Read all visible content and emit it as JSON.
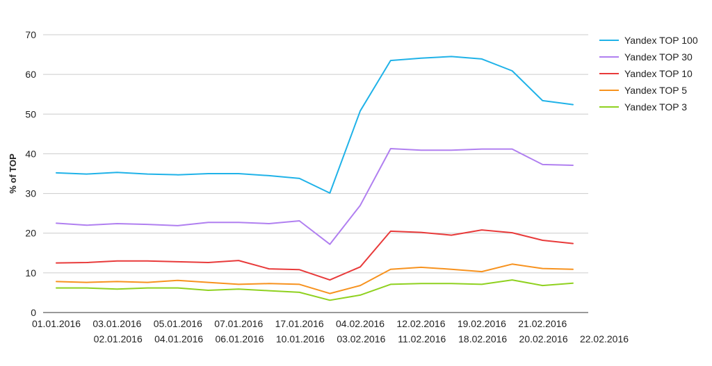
{
  "chart_data": {
    "type": "line",
    "title": "",
    "xlabel": "",
    "ylabel": "% of TOP",
    "ylim": [
      0,
      70
    ],
    "yticks": [
      0,
      10,
      20,
      30,
      40,
      50,
      60,
      70
    ],
    "grid": "horizontal",
    "legend_position": "right",
    "categories": [
      "01.01.2016",
      "02.01.2016",
      "03.01.2016",
      "04.01.2016",
      "05.01.2016",
      "06.01.2016",
      "07.01.2016",
      "10.01.2016",
      "17.01.2016",
      "03.02.2016",
      "04.02.2016",
      "11.02.2016",
      "12.02.2016",
      "18.02.2016",
      "19.02.2016",
      "20.02.2016",
      "21.02.2016",
      "22.02.2016"
    ],
    "series": [
      {
        "name": "Yandex TOP 100",
        "color": "#1fb2e8",
        "values": [
          35.2,
          34.9,
          35.3,
          34.9,
          34.7,
          35.0,
          35.0,
          34.5,
          33.8,
          30.1,
          50.8,
          63.5,
          64.1,
          64.5,
          63.9,
          60.9,
          53.4,
          52.4
        ]
      },
      {
        "name": "Yandex TOP 30",
        "color": "#b07ff0",
        "values": [
          22.5,
          22.0,
          22.4,
          22.2,
          21.9,
          22.7,
          22.7,
          22.4,
          23.1,
          17.2,
          27.0,
          41.3,
          40.9,
          40.9,
          41.2,
          41.2,
          37.3,
          37.1
        ]
      },
      {
        "name": "Yandex TOP 10",
        "color": "#e83a3a",
        "values": [
          12.5,
          12.6,
          13.0,
          13.0,
          12.8,
          12.6,
          13.1,
          11.0,
          10.8,
          8.2,
          11.5,
          20.5,
          20.2,
          19.5,
          20.8,
          20.1,
          18.2,
          17.4
        ]
      },
      {
        "name": "Yandex TOP 5",
        "color": "#f7921e",
        "values": [
          7.8,
          7.6,
          7.8,
          7.6,
          8.1,
          7.6,
          7.1,
          7.3,
          7.1,
          4.8,
          6.8,
          10.9,
          11.4,
          10.9,
          10.3,
          12.2,
          11.1,
          10.9
        ]
      },
      {
        "name": "Yandex TOP 3",
        "color": "#8fd11f",
        "values": [
          6.2,
          6.2,
          5.9,
          6.2,
          6.2,
          5.6,
          5.9,
          5.5,
          5.1,
          3.1,
          4.4,
          7.1,
          7.3,
          7.3,
          7.1,
          8.2,
          6.8,
          7.4
        ]
      }
    ]
  }
}
